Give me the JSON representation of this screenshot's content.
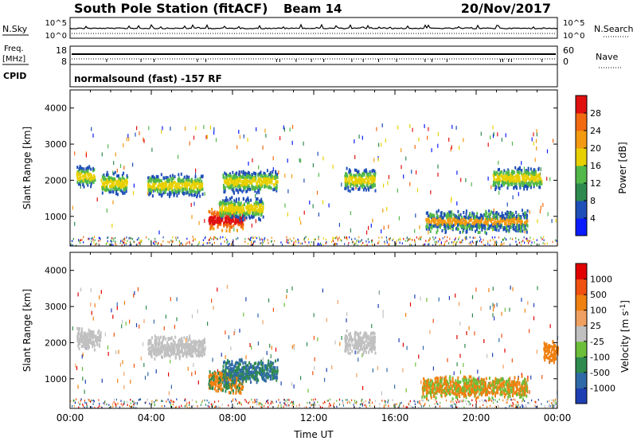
{
  "header": {
    "title": "South Pole Station (fitACF)",
    "beam": "Beam 14",
    "date": "20/Nov/2017"
  },
  "aux_panels": {
    "nsky_label": "N.Sky",
    "nsearch_label": "N.Search",
    "nsky_ticks": [
      "10^5",
      "10^0"
    ],
    "nsearch_ticks": [
      "10^5",
      "10^0"
    ],
    "freq_label_1": "Freq.",
    "freq_label_2": "[MHz]",
    "freq_ticks": [
      "18",
      "8"
    ],
    "nave_label": "Nave",
    "nave_ticks": [
      "60",
      "0"
    ],
    "cpid_label": "CPID",
    "cpid_text": "normalsound (fast) -157 RF"
  },
  "chart_data": [
    {
      "type": "heatmap",
      "name": "power-panel",
      "ylabel": "Slant Range [km]",
      "xlabel": "",
      "y_ticks": [
        "1000",
        "2000",
        "3000",
        "4000"
      ],
      "y_tick_values": [
        1000,
        2000,
        3000,
        4000
      ],
      "ylim": [
        180,
        4500
      ],
      "colorbar": {
        "label": "Power [dB]",
        "ticks": [
          "4",
          "8",
          "12",
          "16",
          "20",
          "24",
          "28"
        ],
        "range": [
          0,
          32
        ],
        "colors": [
          "#0a1cff",
          "#1f4fb8",
          "#2e8a4e",
          "#52b84a",
          "#e8d000",
          "#f39a10",
          "#f26a10",
          "#e01010"
        ]
      },
      "features": [
        {
          "t_start": 0.3,
          "t_end": 1.2,
          "range_km": 2150
        },
        {
          "t_start": 1.5,
          "t_end": 2.8,
          "range_km": 1950
        },
        {
          "t_start": 3.8,
          "t_end": 6.5,
          "range_km": 1900
        },
        {
          "t_start": 6.8,
          "t_end": 8.5,
          "range_km": 950
        },
        {
          "t_start": 7.3,
          "t_end": 9.5,
          "range_km": 1250
        },
        {
          "t_start": 7.5,
          "t_end": 10.2,
          "range_km": 2000
        },
        {
          "t_start": 13.5,
          "t_end": 15.0,
          "range_km": 2050
        },
        {
          "t_start": 17.5,
          "t_end": 22.5,
          "range_km": 900
        },
        {
          "t_start": 20.8,
          "t_end": 23.2,
          "range_km": 2100
        }
      ]
    },
    {
      "type": "heatmap",
      "name": "velocity-panel",
      "ylabel": "Slant Range [km]",
      "xlabel": "Time UT",
      "x_ticks": [
        "00:00",
        "04:00",
        "08:00",
        "12:00",
        "16:00",
        "20:00",
        "00:00"
      ],
      "x_tick_values": [
        0,
        4,
        8,
        12,
        16,
        20,
        24
      ],
      "y_ticks": [
        "1000",
        "2000",
        "3000",
        "4000"
      ],
      "y_tick_values": [
        1000,
        2000,
        3000,
        4000
      ],
      "ylim": [
        180,
        4500
      ],
      "colorbar": {
        "label": "Velocity [m s^-1]",
        "ticks": [
          "1000",
          "500",
          "100",
          "25",
          "-25",
          "-100",
          "-500",
          "-1000"
        ],
        "colors": [
          "#1e3fb4",
          "#2f6aa8",
          "#2e8a4e",
          "#6dbf3a",
          "#c0c0c0",
          "#f0a060",
          "#f08010",
          "#f05010",
          "#e00000"
        ]
      },
      "features": [
        {
          "t_start": 0.3,
          "t_end": 1.5,
          "range_km": 2150
        },
        {
          "t_start": 3.8,
          "t_end": 6.6,
          "range_km": 1900
        },
        {
          "t_start": 6.8,
          "t_end": 8.5,
          "range_km": 950
        },
        {
          "t_start": 7.5,
          "t_end": 10.2,
          "range_km": 1250
        },
        {
          "t_start": 13.5,
          "t_end": 15.0,
          "range_km": 2050
        },
        {
          "t_start": 17.3,
          "t_end": 22.5,
          "range_km": 800
        },
        {
          "t_start": 23.3,
          "t_end": 24.0,
          "range_km": 1800
        }
      ]
    }
  ]
}
